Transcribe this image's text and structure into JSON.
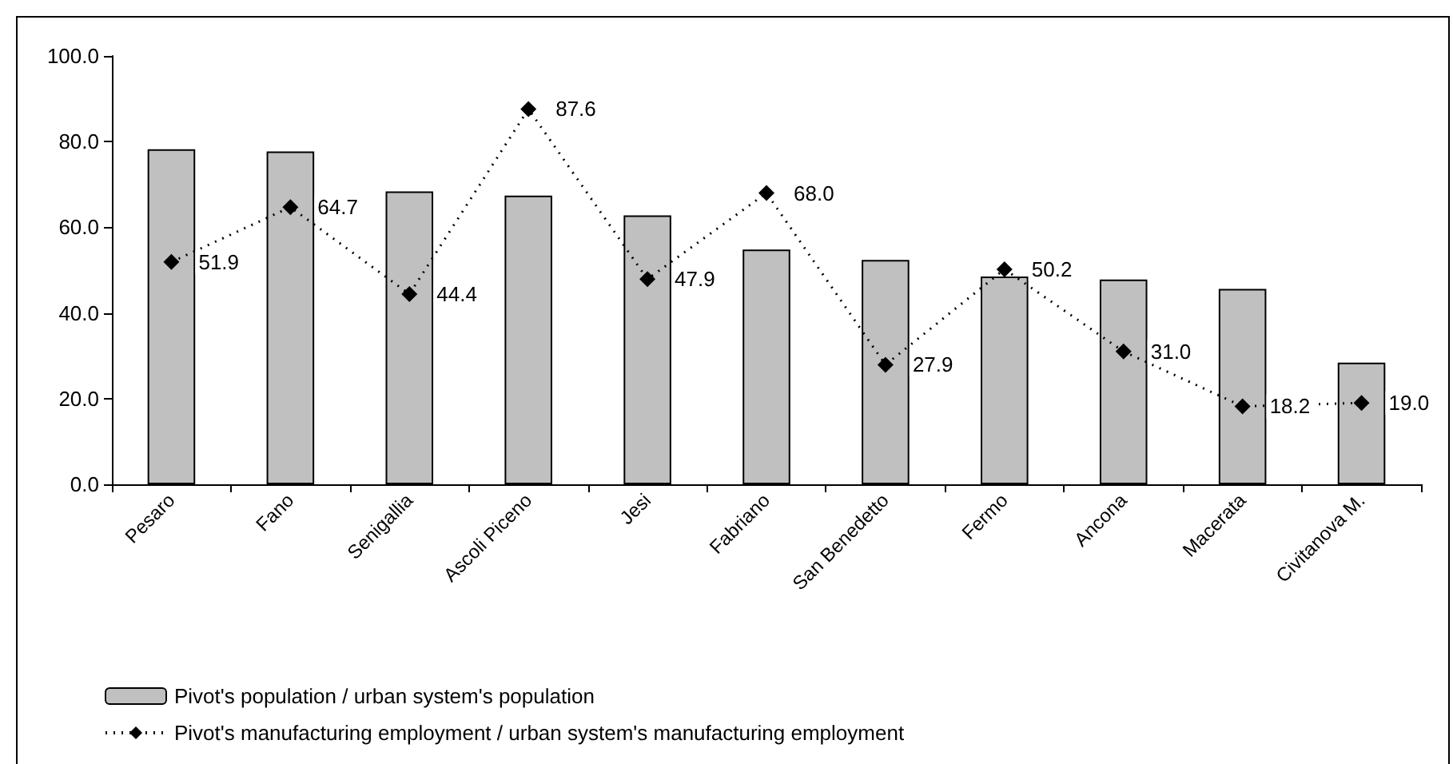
{
  "chart_data": {
    "type": "bar",
    "categories": [
      "Pesaro",
      "Fano",
      "Senigallia",
      "Ascoli Piceno",
      "Jesi",
      "Fabriano",
      "San Benedetto",
      "Fermo",
      "Ancona",
      "Macerata",
      "Civitanova M."
    ],
    "series": [
      {
        "name": "Pivot's population / urban system's population",
        "color": "#c0c0c0",
        "values": [
          78.2,
          77.7,
          68.4,
          67.4,
          62.8,
          54.8,
          52.4,
          48.5,
          47.8,
          45.6,
          28.4
        ]
      },
      {
        "name": "Pivot's manufacturing employment / urban system's manufacturing employment",
        "type": "line",
        "color": "#000000",
        "marker": "diamond",
        "line_style": "dotted",
        "values": [
          51.9,
          64.7,
          44.4,
          87.6,
          47.9,
          68.0,
          27.9,
          50.2,
          31.0,
          18.2,
          19.0
        ],
        "value_labels": [
          "51.9",
          "64.7",
          "44.4",
          "87.6",
          "47.9",
          "68.0",
          "27.9",
          "50.2",
          "31.0",
          "18.2",
          "19.0"
        ]
      }
    ],
    "ylim": [
      0,
      100
    ],
    "yticks": [
      {
        "value": 0,
        "label": "0.0"
      },
      {
        "value": 20,
        "label": "20.0"
      },
      {
        "value": 40,
        "label": "40.0"
      },
      {
        "value": 60,
        "label": "60.0"
      },
      {
        "value": 80,
        "label": "80.0"
      },
      {
        "value": 100,
        "label": "100.0"
      }
    ],
    "grid": false,
    "legend": "bottom left"
  }
}
